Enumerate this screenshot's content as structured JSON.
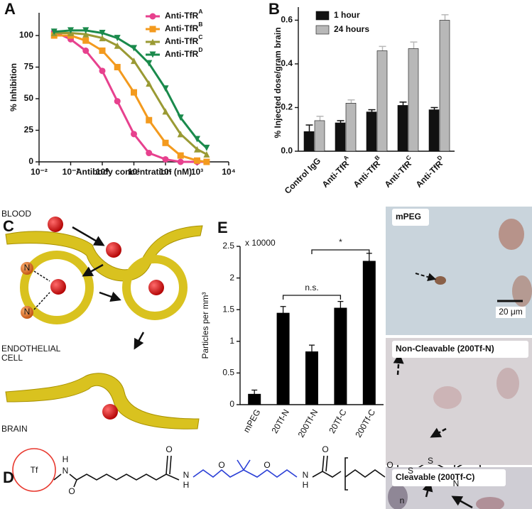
{
  "panel_labels": [
    "A",
    "B",
    "C",
    "D",
    "E"
  ],
  "chart_data": [
    {
      "type": "line",
      "xlabel": "Antibody concentration (nM)",
      "ylabel": "% Inhibition",
      "log_x": true,
      "x": [
        0.03,
        0.1,
        0.3,
        1,
        3,
        10,
        30,
        100,
        300,
        1000,
        2000
      ],
      "xlim": [
        0.01,
        10000
      ],
      "xticks": [
        {
          "value": 0.01,
          "label": "10⁻²"
        },
        {
          "value": 0.1,
          "label": "10⁻¹"
        },
        {
          "value": 1,
          "label": "10⁰"
        },
        {
          "value": 10,
          "label": "10¹"
        },
        {
          "value": 100,
          "label": "10²"
        },
        {
          "value": 1000,
          "label": "10³"
        },
        {
          "value": 10000,
          "label": "10⁴"
        }
      ],
      "ylim": [
        0,
        118
      ],
      "yticks": [
        0,
        25,
        50,
        75,
        100
      ],
      "legend": "upper right",
      "series": [
        {
          "name": "Anti-TfR",
          "name_sup": "A",
          "color": "#e7418e",
          "marker": "circle",
          "values": [
            103,
            97,
            88,
            72,
            48,
            22,
            7,
            2,
            0,
            0,
            0
          ]
        },
        {
          "name": "Anti-TfR",
          "name_sup": "B",
          "color": "#f39a1e",
          "marker": "square",
          "values": [
            100,
            100,
            96,
            88,
            75,
            55,
            33,
            15,
            5,
            1,
            0
          ]
        },
        {
          "name": "Anti-TfR",
          "name_sup": "C",
          "color": "#9a9a34",
          "marker": "triangle-up",
          "values": [
            102,
            102,
            101,
            98,
            92,
            80,
            62,
            40,
            22,
            10,
            6
          ]
        },
        {
          "name": "Anti-TfR",
          "name_sup": "D",
          "color": "#1a8a4c",
          "marker": "triangle-down",
          "values": [
            103,
            104,
            104,
            102,
            98,
            90,
            78,
            58,
            35,
            18,
            11
          ]
        }
      ]
    },
    {
      "type": "bar",
      "ylabel": "% Injected dose/gram brain",
      "categories": [
        "Control IgG",
        "Anti-TfR",
        "Anti-TfR",
        "Anti-TfR",
        "Anti-TfR"
      ],
      "category_sups": [
        null,
        "A",
        "B",
        "C",
        "D"
      ],
      "ylim": [
        0,
        0.66
      ],
      "yticks": [
        {
          "value": 0,
          "label": "0.0"
        },
        0.2,
        0.4,
        0.6
      ],
      "legend": "upper left",
      "series": [
        {
          "name": "1 hour",
          "color": "#111111",
          "values": [
            0.09,
            0.13,
            0.18,
            0.21,
            0.19
          ],
          "errors": [
            0.03,
            0.01,
            0.01,
            0.015,
            0.01
          ]
        },
        {
          "name": "24 hours",
          "color": "#b8b8b8",
          "values": [
            0.14,
            0.22,
            0.46,
            0.47,
            0.6
          ],
          "errors": [
            0.02,
            0.015,
            0.02,
            0.03,
            0.025
          ]
        }
      ]
    },
    {
      "type": "bar",
      "ylabel": "Particles per mm³",
      "annotation": "x 10000",
      "categories": [
        "mPEG",
        "20Tf-N",
        "200Tf-N",
        "20Tf-C",
        "200Tf-C"
      ],
      "values": [
        0.17,
        1.45,
        0.84,
        1.53,
        2.27
      ],
      "errors": [
        0.06,
        0.1,
        0.1,
        0.1,
        0.12
      ],
      "color": "#000000",
      "ylim": [
        0,
        2.5
      ],
      "yticks": [
        0,
        0.5,
        1,
        1.5,
        2,
        2.5
      ],
      "brackets": [
        {
          "label": "n.s.",
          "from": 1,
          "to": 3
        },
        {
          "label": "*",
          "from": 2,
          "to": 4
        }
      ]
    }
  ],
  "diagram": {
    "labels": [
      "BLOOD",
      "ENDOTHELIAL",
      "CELL",
      "BRAIN"
    ],
    "ligand": "N"
  },
  "structure": {
    "protein": "Tf",
    "atoms": [
      "H",
      "N",
      "O",
      "O",
      "N",
      "H",
      "O",
      "O",
      "H",
      "N",
      "O",
      "O",
      "n",
      "S",
      "S",
      "N"
    ]
  },
  "micrographs": [
    {
      "label": "mPEG",
      "scale": "20 μm"
    },
    {
      "label": "Non-Cleavable (200Tf-N)"
    },
    {
      "label": "Cleavable (200Tf-C)"
    }
  ]
}
